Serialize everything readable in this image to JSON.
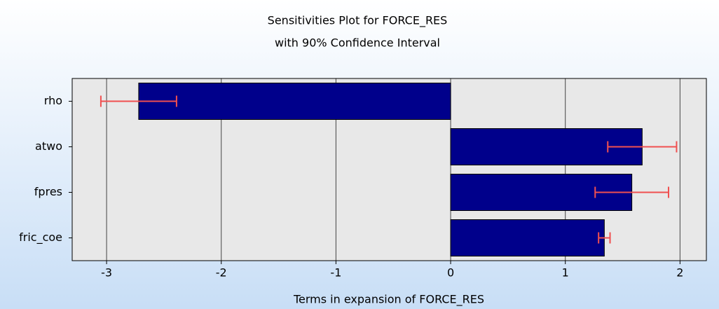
{
  "chart_data": {
    "type": "bar",
    "orientation": "horizontal",
    "title": "Sensitivities Plot for FORCE_RES",
    "subtitle": "with 90% Confidence Interval",
    "xlabel": "Terms in expansion of FORCE_RES",
    "categories": [
      "rho",
      "atwo",
      "fpres",
      "fric_coe"
    ],
    "values": [
      -2.72,
      1.67,
      1.58,
      1.34
    ],
    "errors": [
      0.33,
      0.3,
      0.32,
      0.05
    ],
    "color": "#00008b",
    "error_color": "#f05050",
    "xlim": [
      -3.3,
      2.23
    ],
    "xticks": [
      -3,
      -2,
      -1,
      0,
      1,
      2
    ],
    "grid": true
  }
}
